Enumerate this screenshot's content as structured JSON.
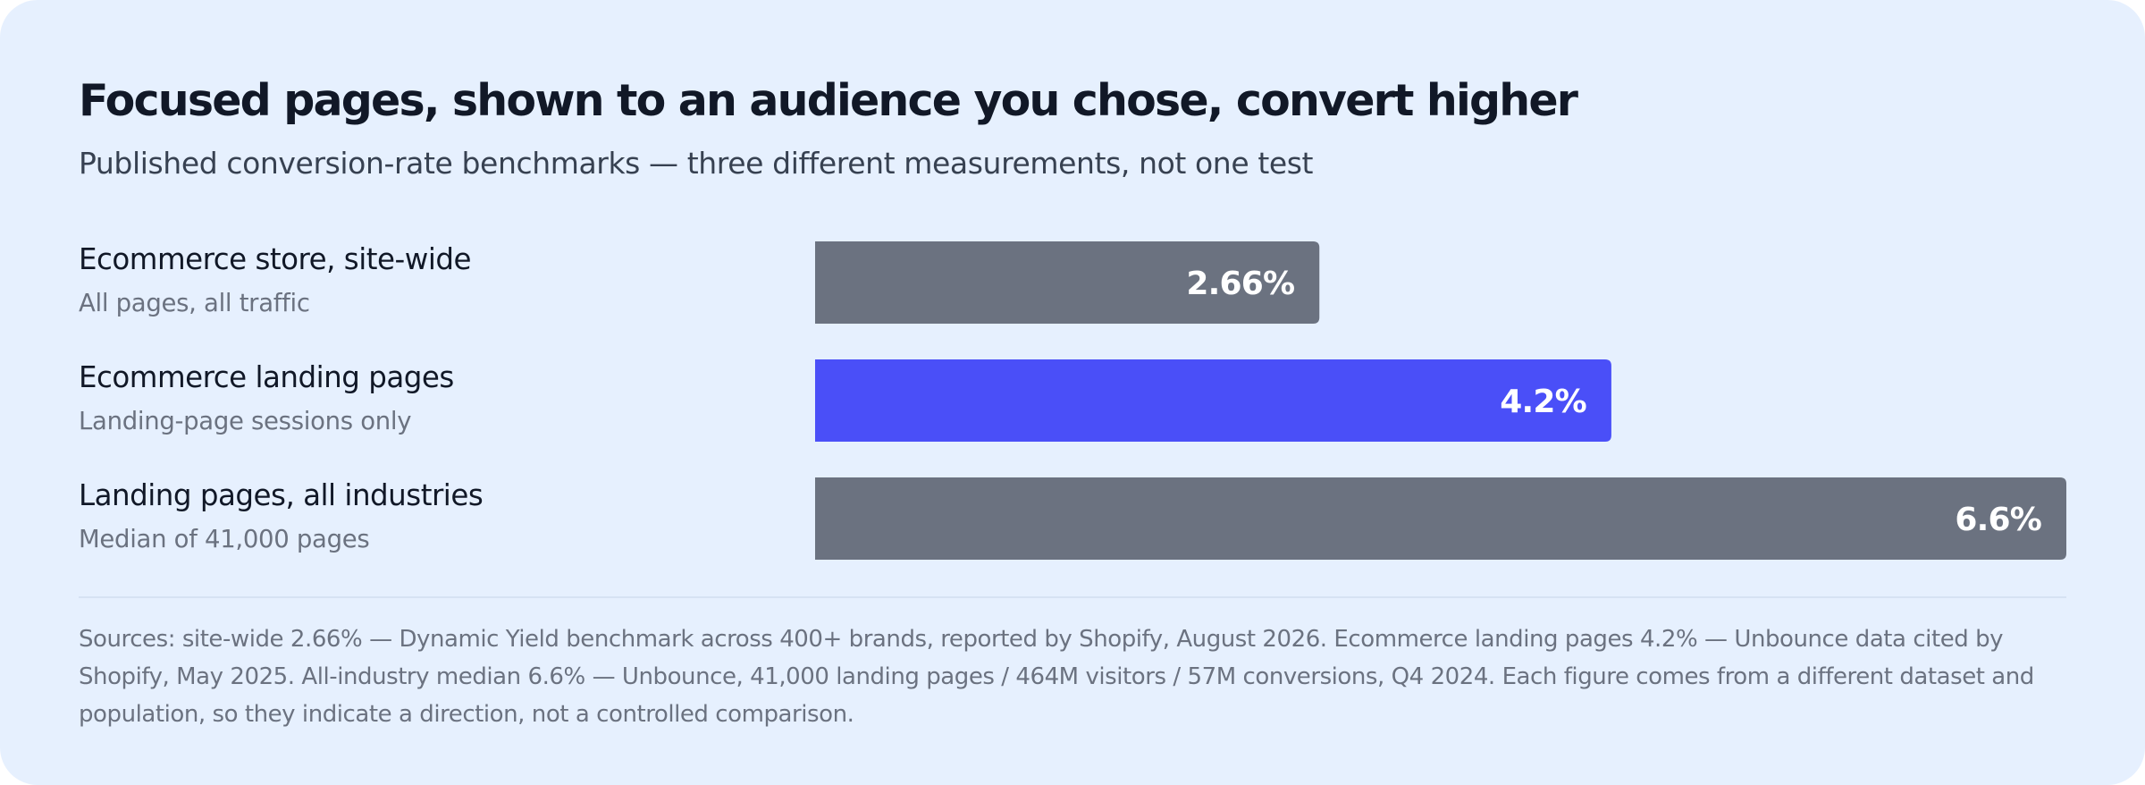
{
  "chart_data": {
    "type": "bar",
    "orientation": "horizontal",
    "title": "Focused pages, shown to an audience you chose, convert higher",
    "subtitle": "Published conversion-rate benchmarks — three different measurements, not one test",
    "categories": [
      {
        "label": "Ecommerce store, site-wide",
        "sublabel": "All pages, all traffic",
        "value": 2.66,
        "value_label": "2.66%",
        "color": "#6b7280"
      },
      {
        "label": "Ecommerce landing pages",
        "sublabel": "Landing-page sessions only",
        "value": 4.2,
        "value_label": "4.2%",
        "color": "#4a4ff8"
      },
      {
        "label": "Landing pages, all industries",
        "sublabel": "Median of 41,000 pages",
        "value": 6.6,
        "value_label": "6.6%",
        "color": "#6b7280"
      }
    ],
    "xlim": [
      0,
      6.6
    ],
    "grid": false,
    "legend": "none",
    "sources": "Sources: site-wide 2.66% — Dynamic Yield benchmark across 400+ brands, reported by Shopify, August 2026. Ecommerce landing pages 4.2% — Unbounce data cited by Shopify, May 2025. All-industry median 6.6% — Unbounce, 41,000 landing pages / 464M visitors / 57M conversions, Q4 2024. Each figure comes from a different dataset and population, so they indicate a direction, not a controlled comparison."
  }
}
